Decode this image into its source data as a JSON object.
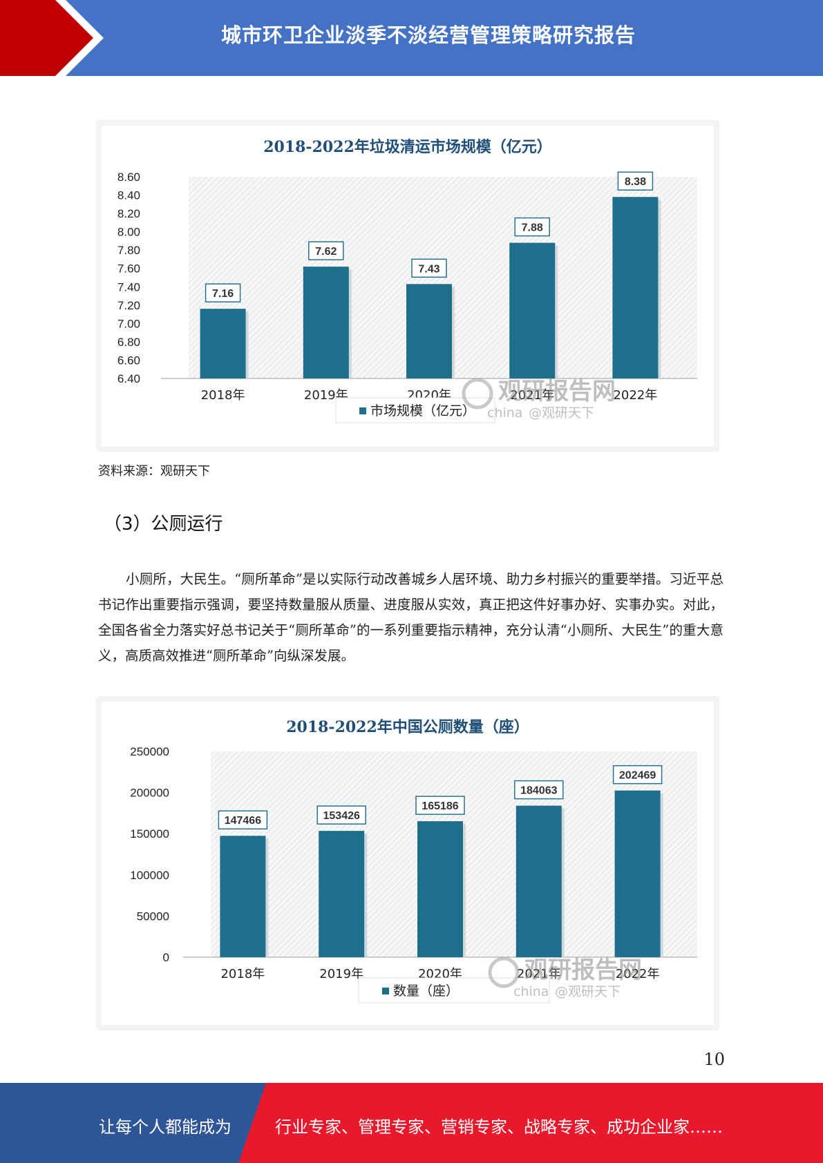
{
  "header": {
    "title": "城市环卫企业淡季不淡经营管理策略研究报告"
  },
  "colors": {
    "header_blue": "#4472c4",
    "header_red": "#c00000",
    "footer_blue": "#2e5597",
    "footer_red": "#e8192c",
    "bar": "#1f6e8c"
  },
  "figures": [
    {
      "watermark": "观研报告网",
      "watermark_sub": "china",
      "watermark_handle": "@观研天下",
      "chart_data": {
        "type": "bar",
        "title": "2018-2022年垃圾清运市场规模（亿元）",
        "categories": [
          "2018年",
          "2019年",
          "2020年",
          "2021年",
          "2022年"
        ],
        "series": [
          {
            "name": "市场规模（亿元）",
            "values": [
              7.16,
              7.62,
              7.43,
              7.88,
              8.38
            ]
          }
        ],
        "data_labels": [
          "7.16",
          "7.62",
          "7.43",
          "7.88",
          "8.38"
        ],
        "ylim": [
          6.4,
          8.6
        ],
        "yticks": [
          "8.60",
          "8.40",
          "8.20",
          "8.00",
          "7.80",
          "7.60",
          "7.40",
          "7.20",
          "7.00",
          "6.80",
          "6.60",
          "6.40"
        ],
        "ytick_values": [
          8.6,
          8.4,
          8.2,
          8.0,
          7.8,
          7.6,
          7.4,
          7.2,
          7.0,
          6.8,
          6.6,
          6.4
        ],
        "legend": "bottom-center"
      }
    },
    {
      "watermark": "观研报告网",
      "watermark_sub": "china",
      "watermark_handle": "@观研天下",
      "chart_data": {
        "type": "bar",
        "title": "2018-2022年中国公厕数量（座）",
        "categories": [
          "2018年",
          "2019年",
          "2020年",
          "2021年",
          "2022年"
        ],
        "series": [
          {
            "name": "数量（座）",
            "values": [
              147466,
              153426,
              165186,
              184063,
              202469
            ]
          }
        ],
        "data_labels": [
          "147466",
          "153426",
          "165186",
          "184063",
          "202469"
        ],
        "ylim": [
          0,
          250000
        ],
        "yticks": [
          "250000",
          "200000",
          "150000",
          "100000",
          "50000",
          "0"
        ],
        "ytick_values": [
          250000,
          200000,
          150000,
          100000,
          50000,
          0
        ],
        "legend": "bottom-center"
      }
    }
  ],
  "source_note": "资料来源：观研天下",
  "section_heading": "（3）公厕运行",
  "paragraph": "小厕所，大民生。“厕所革命”是以实际行动改善城乡人居环境、助力乡村振兴的重要举措。习近平总书记作出重要指示强调，要坚持数量服从质量、进度服从实效，真正把这件好事办好、实事办实。对此，全国各省全力落实好总书记关于“厕所革命”的一系列重要指示精神，充分认清“小厕所、大民生”的重大意义，高质高效推进“厕所革命”向纵深发展。",
  "page_number": "10",
  "footer": {
    "left": "让每个人都能成为",
    "right": "行业专家、管理专家、营销专家、战略专家、成功企业家……"
  }
}
